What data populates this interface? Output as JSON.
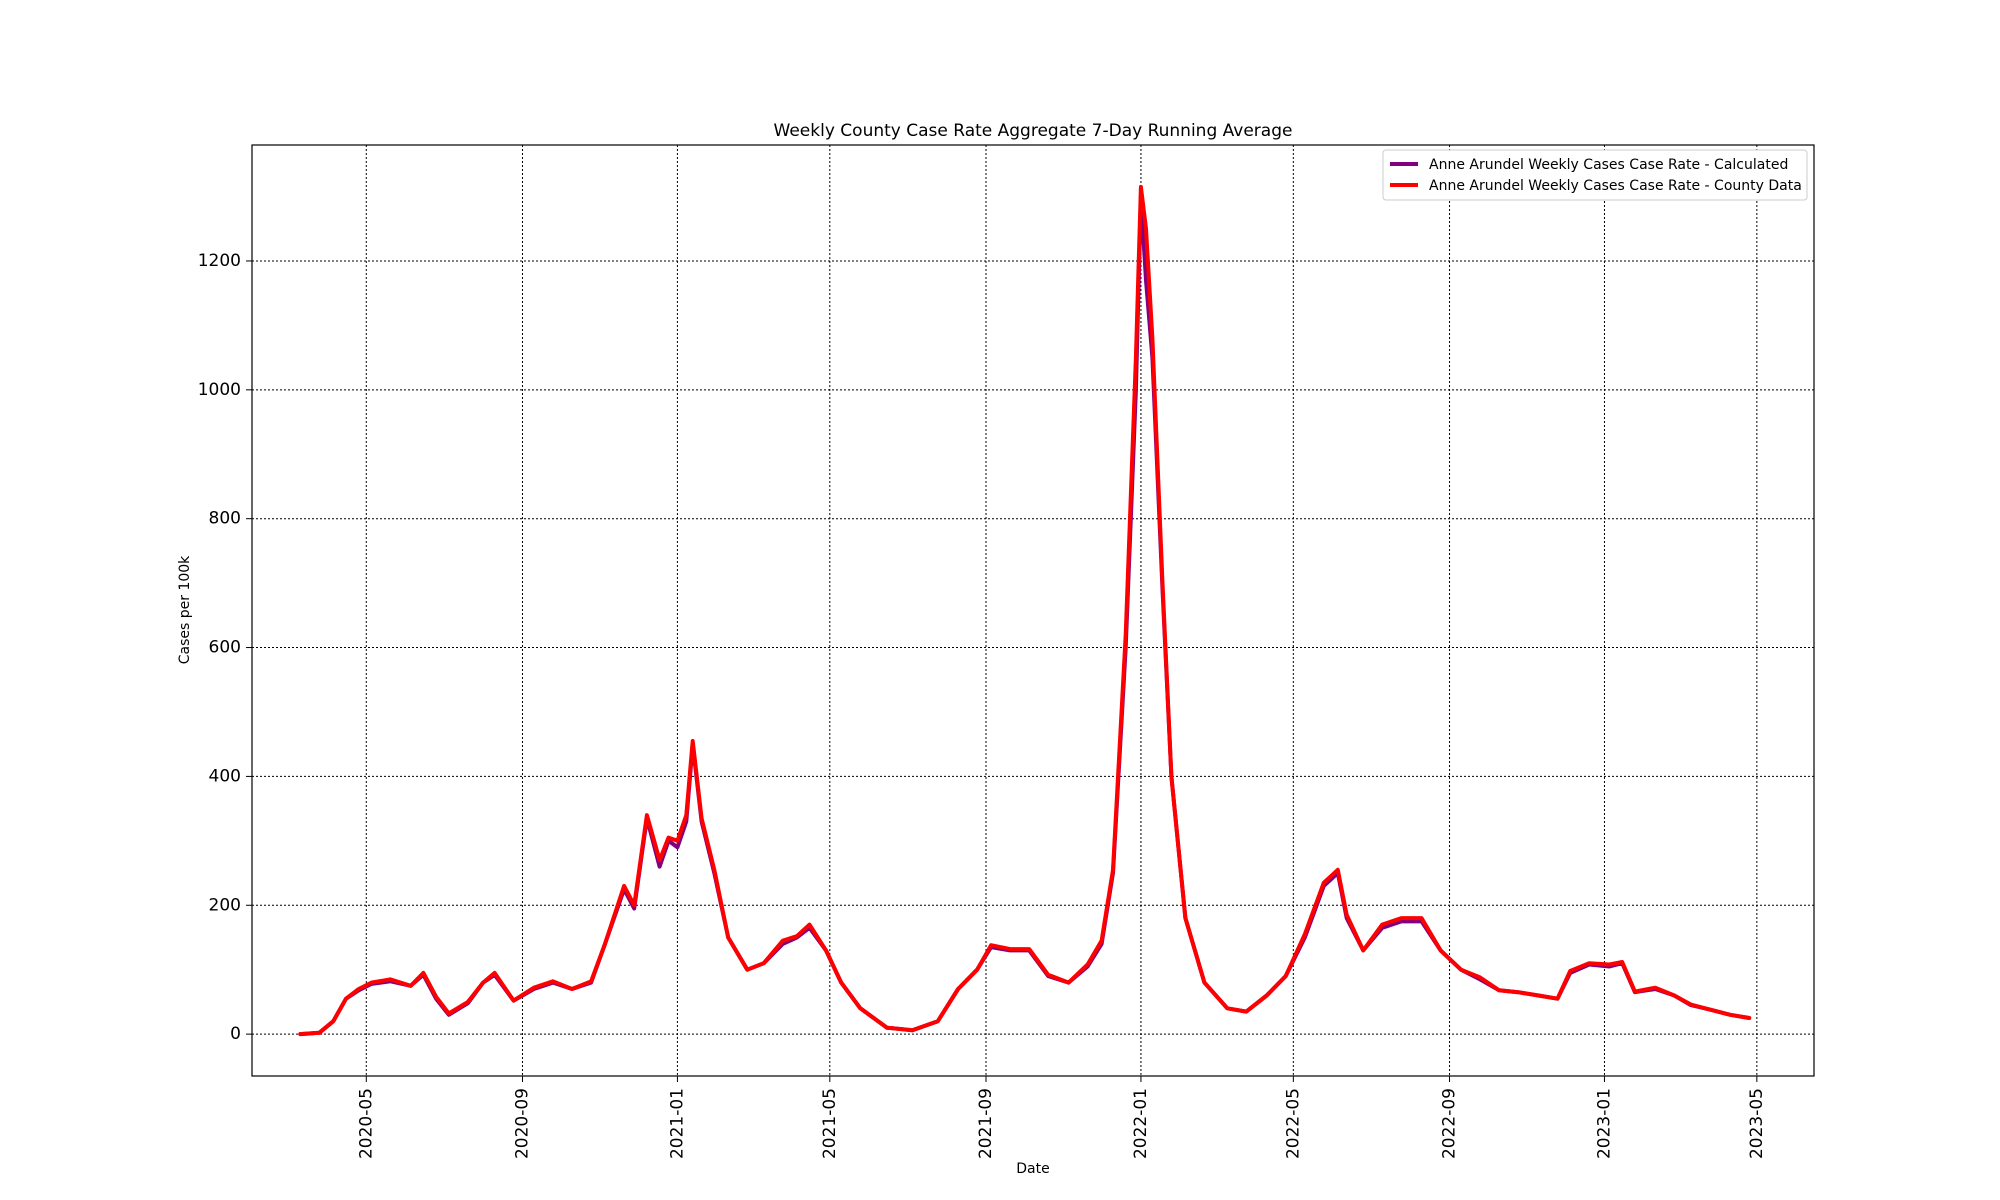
{
  "chart_data": {
    "type": "line",
    "title": "Weekly County Case Rate Aggregate 7-Day Running Average",
    "xlabel": "Date",
    "ylabel": "Cases per 100k",
    "xlim": [
      "2020-02-01",
      "2023-06-15"
    ],
    "ylim": [
      -65,
      1380
    ],
    "x_ticks": [
      "2020-05",
      "2020-09",
      "2021-01",
      "2021-05",
      "2021-09",
      "2022-01",
      "2022-05",
      "2022-09",
      "2023-01",
      "2023-05"
    ],
    "y_ticks": [
      0,
      200,
      400,
      600,
      800,
      1000,
      1200
    ],
    "grid": true,
    "legend_position": "top-right",
    "series": [
      {
        "name": "Anne Arundel Weekly Cases Case Rate - Calculated",
        "color": "#800080",
        "points": [
          [
            "2020-03-10",
            0
          ],
          [
            "2020-03-25",
            2
          ],
          [
            "2020-04-05",
            20
          ],
          [
            "2020-04-15",
            55
          ],
          [
            "2020-04-25",
            68
          ],
          [
            "2020-05-05",
            78
          ],
          [
            "2020-05-20",
            82
          ],
          [
            "2020-06-05",
            75
          ],
          [
            "2020-06-15",
            92
          ],
          [
            "2020-06-25",
            55
          ],
          [
            "2020-07-05",
            30
          ],
          [
            "2020-07-20",
            48
          ],
          [
            "2020-08-01",
            80
          ],
          [
            "2020-08-10",
            92
          ],
          [
            "2020-08-25",
            52
          ],
          [
            "2020-09-10",
            70
          ],
          [
            "2020-09-25",
            80
          ],
          [
            "2020-10-10",
            70
          ],
          [
            "2020-10-25",
            80
          ],
          [
            "2020-11-05",
            140
          ],
          [
            "2020-11-20",
            225
          ],
          [
            "2020-11-28",
            195
          ],
          [
            "2020-12-08",
            335
          ],
          [
            "2020-12-18",
            260
          ],
          [
            "2020-12-25",
            300
          ],
          [
            "2021-01-01",
            290
          ],
          [
            "2021-01-08",
            330
          ],
          [
            "2021-01-13",
            450
          ],
          [
            "2021-01-20",
            330
          ],
          [
            "2021-01-30",
            250
          ],
          [
            "2021-02-10",
            150
          ],
          [
            "2021-02-25",
            100
          ],
          [
            "2021-03-10",
            110
          ],
          [
            "2021-03-25",
            140
          ],
          [
            "2021-04-05",
            150
          ],
          [
            "2021-04-15",
            165
          ],
          [
            "2021-04-28",
            130
          ],
          [
            "2021-05-10",
            80
          ],
          [
            "2021-05-25",
            40
          ],
          [
            "2021-06-15",
            10
          ],
          [
            "2021-07-05",
            6
          ],
          [
            "2021-07-25",
            20
          ],
          [
            "2021-08-10",
            70
          ],
          [
            "2021-08-25",
            100
          ],
          [
            "2021-09-05",
            135
          ],
          [
            "2021-09-20",
            130
          ],
          [
            "2021-10-05",
            130
          ],
          [
            "2021-10-20",
            90
          ],
          [
            "2021-11-05",
            80
          ],
          [
            "2021-11-20",
            105
          ],
          [
            "2021-12-01",
            140
          ],
          [
            "2021-12-10",
            250
          ],
          [
            "2021-12-20",
            600
          ],
          [
            "2021-12-28",
            1000
          ],
          [
            "2022-01-01",
            1300
          ],
          [
            "2022-01-05",
            1170
          ],
          [
            "2022-01-10",
            1050
          ],
          [
            "2022-01-18",
            690
          ],
          [
            "2022-01-25",
            400
          ],
          [
            "2022-02-05",
            180
          ],
          [
            "2022-02-20",
            80
          ],
          [
            "2022-03-10",
            40
          ],
          [
            "2022-03-25",
            35
          ],
          [
            "2022-04-10",
            60
          ],
          [
            "2022-04-25",
            90
          ],
          [
            "2022-05-10",
            150
          ],
          [
            "2022-05-25",
            230
          ],
          [
            "2022-06-05",
            250
          ],
          [
            "2022-06-12",
            180
          ],
          [
            "2022-06-25",
            130
          ],
          [
            "2022-07-10",
            165
          ],
          [
            "2022-07-25",
            175
          ],
          [
            "2022-08-10",
            175
          ],
          [
            "2022-08-25",
            130
          ],
          [
            "2022-09-10",
            100
          ],
          [
            "2022-09-25",
            85
          ],
          [
            "2022-10-10",
            68
          ],
          [
            "2022-10-25",
            65
          ],
          [
            "2022-11-10",
            60
          ],
          [
            "2022-11-25",
            55
          ],
          [
            "2022-12-05",
            95
          ],
          [
            "2022-12-20",
            108
          ],
          [
            "2023-01-05",
            105
          ],
          [
            "2023-01-15",
            110
          ],
          [
            "2023-01-25",
            65
          ],
          [
            "2023-02-10",
            70
          ],
          [
            "2023-02-25",
            60
          ],
          [
            "2023-03-10",
            45
          ],
          [
            "2023-03-25",
            38
          ],
          [
            "2023-04-10",
            30
          ],
          [
            "2023-04-25",
            25
          ]
        ]
      },
      {
        "name": "Anne Arundel Weekly Cases Case Rate - County Data",
        "color": "#ff0000",
        "points": [
          [
            "2020-03-10",
            0
          ],
          [
            "2020-03-25",
            2
          ],
          [
            "2020-04-05",
            20
          ],
          [
            "2020-04-15",
            55
          ],
          [
            "2020-04-25",
            70
          ],
          [
            "2020-05-05",
            80
          ],
          [
            "2020-05-20",
            85
          ],
          [
            "2020-06-05",
            75
          ],
          [
            "2020-06-15",
            95
          ],
          [
            "2020-06-25",
            58
          ],
          [
            "2020-07-05",
            32
          ],
          [
            "2020-07-20",
            50
          ],
          [
            "2020-08-01",
            80
          ],
          [
            "2020-08-10",
            95
          ],
          [
            "2020-08-25",
            52
          ],
          [
            "2020-09-10",
            72
          ],
          [
            "2020-09-25",
            82
          ],
          [
            "2020-10-10",
            70
          ],
          [
            "2020-10-25",
            82
          ],
          [
            "2020-11-05",
            140
          ],
          [
            "2020-11-20",
            230
          ],
          [
            "2020-11-28",
            200
          ],
          [
            "2020-12-08",
            340
          ],
          [
            "2020-12-18",
            270
          ],
          [
            "2020-12-25",
            305
          ],
          [
            "2021-01-01",
            300
          ],
          [
            "2021-01-08",
            340
          ],
          [
            "2021-01-13",
            455
          ],
          [
            "2021-01-20",
            335
          ],
          [
            "2021-01-30",
            255
          ],
          [
            "2021-02-10",
            150
          ],
          [
            "2021-02-25",
            100
          ],
          [
            "2021-03-10",
            110
          ],
          [
            "2021-03-25",
            145
          ],
          [
            "2021-04-05",
            152
          ],
          [
            "2021-04-15",
            170
          ],
          [
            "2021-04-28",
            130
          ],
          [
            "2021-05-10",
            80
          ],
          [
            "2021-05-25",
            40
          ],
          [
            "2021-06-15",
            10
          ],
          [
            "2021-07-05",
            6
          ],
          [
            "2021-07-25",
            20
          ],
          [
            "2021-08-10",
            70
          ],
          [
            "2021-08-25",
            100
          ],
          [
            "2021-09-05",
            138
          ],
          [
            "2021-09-20",
            132
          ],
          [
            "2021-10-05",
            132
          ],
          [
            "2021-10-20",
            92
          ],
          [
            "2021-11-05",
            80
          ],
          [
            "2021-11-20",
            108
          ],
          [
            "2021-12-01",
            145
          ],
          [
            "2021-12-10",
            255
          ],
          [
            "2021-12-20",
            620
          ],
          [
            "2021-12-28",
            1050
          ],
          [
            "2022-01-01",
            1315
          ],
          [
            "2022-01-05",
            1250
          ],
          [
            "2022-01-10",
            1080
          ],
          [
            "2022-01-18",
            700
          ],
          [
            "2022-01-25",
            400
          ],
          [
            "2022-02-05",
            180
          ],
          [
            "2022-02-20",
            80
          ],
          [
            "2022-03-10",
            40
          ],
          [
            "2022-03-25",
            35
          ],
          [
            "2022-04-10",
            60
          ],
          [
            "2022-04-25",
            90
          ],
          [
            "2022-05-10",
            155
          ],
          [
            "2022-05-25",
            235
          ],
          [
            "2022-06-05",
            255
          ],
          [
            "2022-06-12",
            185
          ],
          [
            "2022-06-25",
            130
          ],
          [
            "2022-07-10",
            170
          ],
          [
            "2022-07-25",
            180
          ],
          [
            "2022-08-10",
            180
          ],
          [
            "2022-08-25",
            130
          ],
          [
            "2022-09-10",
            100
          ],
          [
            "2022-09-25",
            88
          ],
          [
            "2022-10-10",
            68
          ],
          [
            "2022-10-25",
            65
          ],
          [
            "2022-11-10",
            60
          ],
          [
            "2022-11-25",
            55
          ],
          [
            "2022-12-05",
            98
          ],
          [
            "2022-12-20",
            110
          ],
          [
            "2023-01-05",
            108
          ],
          [
            "2023-01-15",
            112
          ],
          [
            "2023-01-25",
            66
          ],
          [
            "2023-02-10",
            72
          ],
          [
            "2023-02-25",
            60
          ],
          [
            "2023-03-10",
            46
          ],
          [
            "2023-03-25",
            38
          ],
          [
            "2023-04-10",
            30
          ],
          [
            "2023-04-25",
            25
          ]
        ]
      }
    ]
  }
}
